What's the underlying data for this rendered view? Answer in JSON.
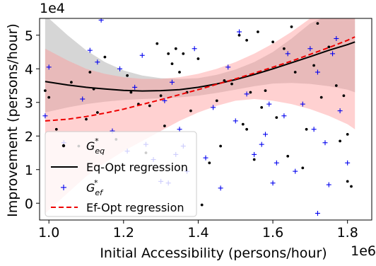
{
  "chart_data": {
    "type": "scatter",
    "title": "",
    "xlabel": "Initial Accessibility (persons/hour)",
    "ylabel": "Improvement (persons/hour)",
    "x_scale_label": "1e6",
    "y_scale_label": "1e4",
    "xlim": [
      0.975,
      1.865
    ],
    "ylim": [
      -0.5,
      5.5
    ],
    "x_ticks": [
      "1.0",
      "1.2",
      "1.4",
      "1.6",
      "1.8"
    ],
    "x_tick_values": [
      1.0,
      1.2,
      1.4,
      1.6,
      1.8
    ],
    "y_ticks": [
      "0",
      "1",
      "2",
      "3",
      "4",
      "5"
    ],
    "y_tick_values": [
      0,
      1,
      2,
      3,
      4,
      5
    ],
    "legend_position": "lower-left",
    "colors": {
      "eq": "#000000",
      "ef": "#0000ee",
      "eq_band": "#999999",
      "ef_band": "#ff9999",
      "ef_line": "#ee0000"
    },
    "series": [
      {
        "name": "G*eq",
        "legend_main": "G",
        "legend_sup": "*",
        "legend_sub": "eq",
        "kind": "scatter",
        "marker": "dot",
        "points": [
          [
            0.99,
            3.35
          ],
          [
            1.0,
            3.15
          ],
          [
            1.02,
            2.2
          ],
          [
            1.06,
            3.6
          ],
          [
            1.08,
            1.7
          ],
          [
            1.1,
            2.5
          ],
          [
            1.11,
            3.9
          ],
          [
            1.12,
            3.4
          ],
          [
            1.13,
            2.7
          ],
          [
            1.15,
            4.35
          ],
          [
            1.18,
            1.9
          ],
          [
            1.21,
            3.8
          ],
          [
            1.22,
            3.3
          ],
          [
            1.24,
            2.95
          ],
          [
            1.26,
            1.5
          ],
          [
            1.27,
            2.9
          ],
          [
            1.29,
            4.75
          ],
          [
            1.3,
            3.2
          ],
          [
            1.31,
            2.3
          ],
          [
            1.32,
            4.45
          ],
          [
            1.33,
            4.15
          ],
          [
            1.34,
            4.6
          ],
          [
            1.35,
            3.9
          ],
          [
            1.36,
            4.45
          ],
          [
            1.37,
            3.3
          ],
          [
            1.38,
            2.75
          ],
          [
            1.4,
            4.3
          ],
          [
            1.41,
            -0.05
          ],
          [
            1.43,
            1.2
          ],
          [
            1.45,
            3.05
          ],
          [
            1.46,
            1.7
          ],
          [
            1.47,
            3.65
          ],
          [
            1.49,
            3.55
          ],
          [
            1.51,
            5.0
          ],
          [
            1.52,
            2.35
          ],
          [
            1.53,
            2.2
          ],
          [
            1.53,
            4.85
          ],
          [
            1.54,
            3.3
          ],
          [
            1.55,
            1.3
          ],
          [
            1.56,
            5.1
          ],
          [
            1.57,
            2.85
          ],
          [
            1.58,
            3.35
          ],
          [
            1.6,
            4.8
          ],
          [
            1.61,
            2.55
          ],
          [
            1.63,
            4.6
          ],
          [
            1.64,
            1.4
          ],
          [
            1.65,
            5.25
          ],
          [
            1.66,
            3.9
          ],
          [
            1.68,
            1.05
          ],
          [
            1.69,
            2.2
          ],
          [
            1.71,
            4.1
          ],
          [
            1.72,
            5.35
          ],
          [
            1.73,
            3.15
          ],
          [
            1.75,
            4.65
          ],
          [
            1.77,
            3.5
          ],
          [
            1.78,
            1.85
          ],
          [
            1.79,
            3.2
          ],
          [
            1.8,
            0.65
          ],
          [
            1.8,
            2.05
          ],
          [
            1.81,
            0.5
          ]
        ]
      },
      {
        "name": "Eq-Opt regression",
        "kind": "line",
        "style": "solid",
        "x": [
          0.99,
          1.05,
          1.1,
          1.15,
          1.2,
          1.25,
          1.3,
          1.35,
          1.4,
          1.45,
          1.5,
          1.55,
          1.6,
          1.65,
          1.7,
          1.75,
          1.8,
          1.82
        ],
        "y": [
          3.62,
          3.52,
          3.45,
          3.4,
          3.36,
          3.34,
          3.35,
          3.38,
          3.45,
          3.55,
          3.68,
          3.83,
          4.0,
          4.18,
          4.36,
          4.55,
          4.72,
          4.8
        ],
        "band_lower": [
          2.7,
          2.85,
          2.95,
          3.02,
          3.07,
          3.1,
          3.12,
          3.15,
          3.2,
          3.28,
          3.38,
          3.48,
          3.56,
          3.58,
          3.55,
          3.48,
          3.38,
          3.3
        ],
        "band_upper": [
          5.6,
          5.0,
          4.55,
          4.2,
          3.95,
          3.8,
          3.72,
          3.7,
          3.72,
          3.82,
          3.98,
          4.2,
          4.5,
          4.9,
          5.35,
          5.6,
          5.6,
          5.6
        ]
      },
      {
        "name": "G*ef",
        "legend_main": "G",
        "legend_sup": "*",
        "legend_sub": "ef",
        "kind": "scatter",
        "marker": "plus",
        "points": [
          [
            0.99,
            2.6
          ],
          [
            1.0,
            4.05
          ],
          [
            1.04,
            1.8
          ],
          [
            1.09,
            3.1
          ],
          [
            1.11,
            4.55
          ],
          [
            1.13,
            4.2
          ],
          [
            1.14,
            5.45
          ],
          [
            1.17,
            2.15
          ],
          [
            1.19,
            4.0
          ],
          [
            1.21,
            1.55
          ],
          [
            1.23,
            3.45
          ],
          [
            1.25,
            4.4
          ],
          [
            1.26,
            1.75
          ],
          [
            1.28,
            1.3
          ],
          [
            1.3,
            0.65
          ],
          [
            1.31,
            3.05
          ],
          [
            1.32,
            0.6
          ],
          [
            1.33,
            3.6
          ],
          [
            1.34,
            1.45
          ],
          [
            1.35,
            2.2
          ],
          [
            1.36,
            1.7
          ],
          [
            1.37,
            0.95
          ],
          [
            1.39,
            4.6
          ],
          [
            1.42,
            1.35
          ],
          [
            1.44,
            2.85
          ],
          [
            1.46,
            0.45
          ],
          [
            1.48,
            4.05
          ],
          [
            1.5,
            2.45
          ],
          [
            1.51,
            5.1
          ],
          [
            1.53,
            3.25
          ],
          [
            1.55,
            1.45
          ],
          [
            1.57,
            1.75
          ],
          [
            1.58,
            2.05
          ],
          [
            1.59,
            2.95
          ],
          [
            1.6,
            0.6
          ],
          [
            1.61,
            1.2
          ],
          [
            1.63,
            2.6
          ],
          [
            1.64,
            4.45
          ],
          [
            1.66,
            0.95
          ],
          [
            1.68,
            2.95
          ],
          [
            1.7,
            4.6
          ],
          [
            1.71,
            2.2
          ],
          [
            1.72,
            3.9
          ],
          [
            1.74,
            1.8
          ],
          [
            1.75,
            0.55
          ],
          [
            1.76,
            4.45
          ],
          [
            1.78,
            2.75
          ],
          [
            1.8,
            1.2
          ],
          [
            1.72,
            -0.3
          ],
          [
            1.77,
            4.9
          ]
        ]
      },
      {
        "name": "Ef-Opt regression",
        "kind": "line",
        "style": "dashed",
        "x": [
          0.99,
          1.05,
          1.1,
          1.15,
          1.2,
          1.25,
          1.3,
          1.35,
          1.4,
          1.45,
          1.5,
          1.55,
          1.6,
          1.65,
          1.7,
          1.75,
          1.8,
          1.82
        ],
        "y": [
          2.45,
          2.5,
          2.58,
          2.68,
          2.8,
          2.94,
          3.08,
          3.23,
          3.38,
          3.54,
          3.7,
          3.87,
          4.05,
          4.23,
          4.43,
          4.63,
          4.85,
          4.95
        ],
        "band_lower": [
          -0.3,
          0.3,
          0.8,
          1.2,
          1.55,
          1.85,
          2.15,
          2.45,
          2.7,
          2.9,
          3.05,
          3.1,
          3.05,
          2.95,
          2.8,
          2.6,
          2.35,
          2.2
        ],
        "band_upper": [
          4.6,
          4.25,
          4.0,
          3.85,
          3.75,
          3.7,
          3.7,
          3.75,
          3.85,
          4.0,
          4.2,
          4.45,
          4.75,
          5.1,
          5.5,
          5.6,
          5.6,
          5.6
        ]
      }
    ]
  }
}
